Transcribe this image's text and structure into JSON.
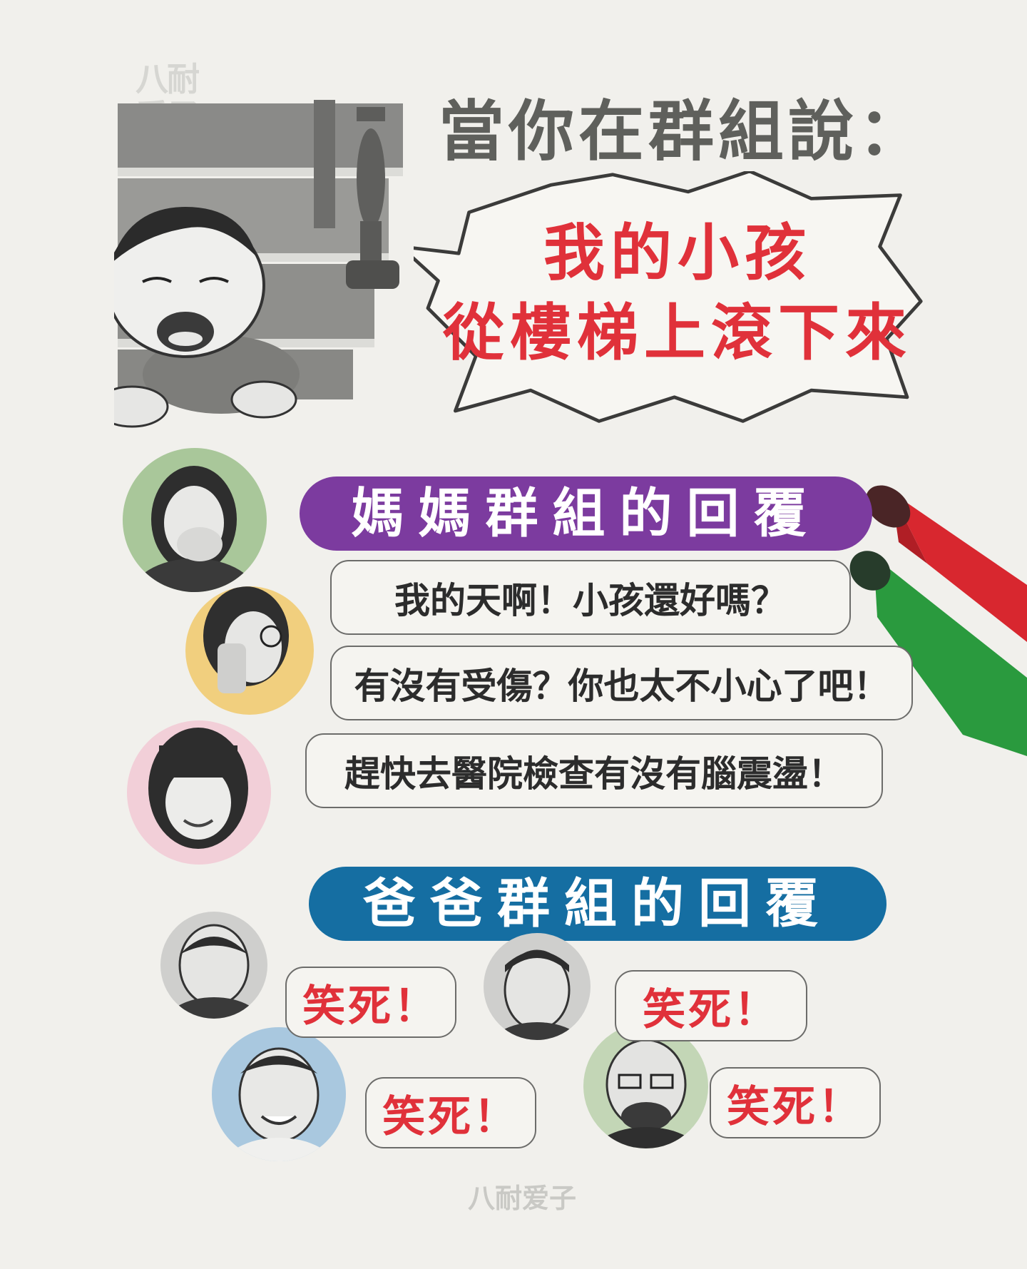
{
  "logo": {
    "text": "八耐爱子"
  },
  "title": "當你在群組說：",
  "burst": {
    "line1": "我的小孩",
    "line2": "從樓梯上滾下來"
  },
  "mom_group": {
    "header": "媽媽群組的回覆",
    "replies": [
      {
        "text": "我的天啊！小孩還好嗎？",
        "avatar_color": "#a9c79a"
      },
      {
        "text": "有沒有受傷？你也太不小心了吧！",
        "avatar_color": "#f1cf7e"
      },
      {
        "text": "趕快去醫院檢查有沒有腦震盪！",
        "avatar_color": "#f2cfd8"
      }
    ]
  },
  "dad_group": {
    "header": "爸爸群組的回覆",
    "replies": [
      {
        "text": "笑死！",
        "avatar_color": "#cfcfcd"
      },
      {
        "text": "笑死！",
        "avatar_color": "#cfcfcd"
      },
      {
        "text": "笑死！",
        "avatar_color": "#a9c8df"
      },
      {
        "text": "笑死！",
        "avatar_color": "#c3d6b6"
      }
    ]
  },
  "colors": {
    "accent_red": "#e0313a",
    "mom_purple": "#7c3b9f",
    "dad_blue": "#156ea2",
    "marker_red": "#d8272f",
    "marker_green": "#2a9a3e"
  }
}
